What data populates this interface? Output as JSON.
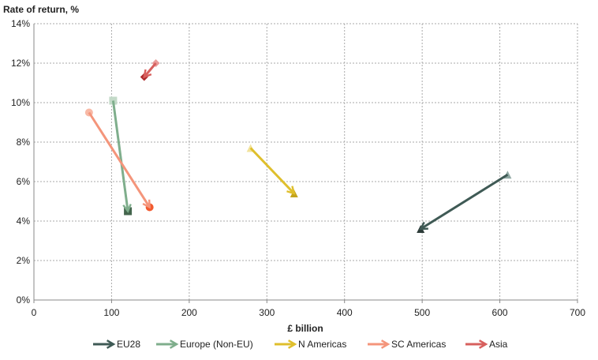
{
  "chart_data": {
    "type": "arrow-scatter",
    "ylabel": "Rate of return, %",
    "xlabel": "£ billion",
    "xlim": [
      0,
      700
    ],
    "ylim": [
      0,
      14
    ],
    "x_ticks": [
      0,
      100,
      200,
      300,
      400,
      500,
      600,
      700
    ],
    "y_ticks": [
      "0%",
      "2%",
      "4%",
      "6%",
      "8%",
      "10%",
      "12%",
      "14%"
    ],
    "grid": true,
    "legend_position": "bottom",
    "series": [
      {
        "name": "EU28",
        "marker": "triangle",
        "color": "#3f5a55",
        "start_color": "#8fa8a2",
        "end_color": "#2c3b38",
        "start": [
          610,
          6.35
        ],
        "end": [
          498,
          3.6
        ]
      },
      {
        "name": "Europe (Non-EU)",
        "marker": "square",
        "color": "#7fae8c",
        "start_color": "#c3dac8",
        "end_color": "#44654d",
        "start": [
          102,
          10.1
        ],
        "end": [
          121,
          4.5
        ]
      },
      {
        "name": "N Americas",
        "marker": "triangle",
        "color": "#dfbf2c",
        "start_color": "#f2e39c",
        "end_color": "#c4a41c",
        "start": [
          279,
          7.7
        ],
        "end": [
          335,
          5.4
        ]
      },
      {
        "name": "SC Americas",
        "marker": "circle",
        "color": "#f4957b",
        "start_color": "#f8b9a6",
        "end_color": "#f25a2f",
        "start": [
          71,
          9.5
        ],
        "end": [
          149,
          4.7
        ]
      },
      {
        "name": "Asia",
        "marker": "diamond",
        "color": "#d7605e",
        "start_color": "#e89c9a",
        "end_color": "#ae2a2c",
        "start": [
          157,
          12.0
        ],
        "end": [
          142,
          11.3
        ]
      }
    ]
  }
}
